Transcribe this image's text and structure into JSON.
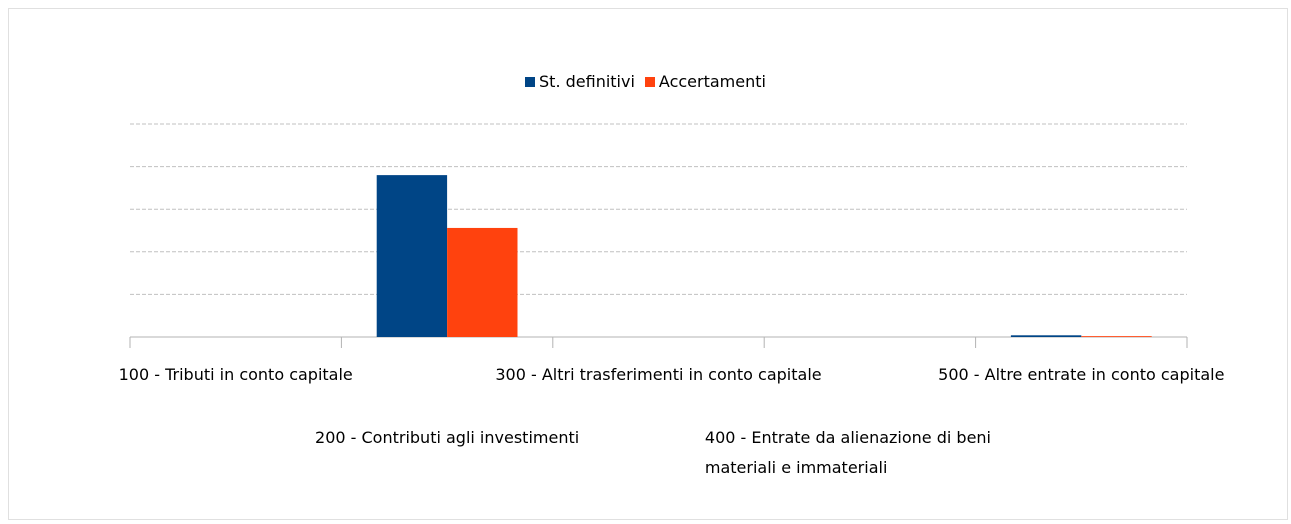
{
  "chart_data": {
    "type": "bar",
    "categories": [
      "100 - Tributi in conto capitale",
      "200 - Contributi agli investimenti",
      "300 - Altri trasferimenti in conto capitale",
      "400 - Entrate da alienazione di beni materiali e immateriali",
      "500 - Altre entrate in conto capitale"
    ],
    "series": [
      {
        "name": "St. definitivi",
        "color": "#004586",
        "values": [
          0,
          3.8,
          0,
          0,
          0.04
        ]
      },
      {
        "name": "Accertamenti",
        "color": "#ff420e",
        "values": [
          0,
          2.56,
          0,
          0,
          0.02
        ]
      }
    ],
    "ylim": [
      0,
      5
    ],
    "yticks": [
      0,
      1,
      2,
      3,
      4,
      5
    ],
    "grid": true,
    "legend": "top"
  }
}
